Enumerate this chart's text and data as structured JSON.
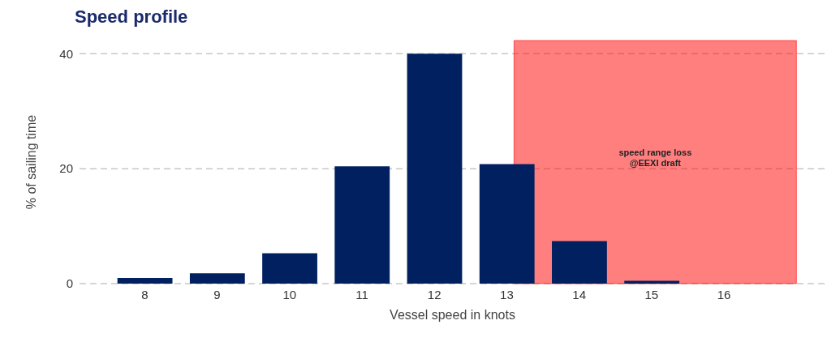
{
  "chart_data": {
    "type": "bar",
    "title": "Speed profile",
    "xlabel": "Vessel speed in knots",
    "ylabel": "% of sailing time",
    "x": [
      8,
      9,
      10,
      11,
      12,
      13,
      14,
      15,
      16
    ],
    "values": [
      1.0,
      1.8,
      5.3,
      20.4,
      40,
      20.8,
      7.4,
      0.5,
      0
    ],
    "color": "#012060",
    "xlim": [
      7.1,
      17.4
    ],
    "xticks": [
      8,
      9,
      10,
      11,
      12,
      13,
      14,
      15,
      16
    ],
    "ylim": [
      0,
      42.3
    ],
    "yticks": [
      0,
      20,
      40
    ],
    "grid": "y",
    "bands": [
      {
        "axis": "x",
        "from": 13.1,
        "to": 17.0,
        "label": "speed range loss\n@EEXI draft",
        "color": "#ff0000"
      }
    ]
  }
}
